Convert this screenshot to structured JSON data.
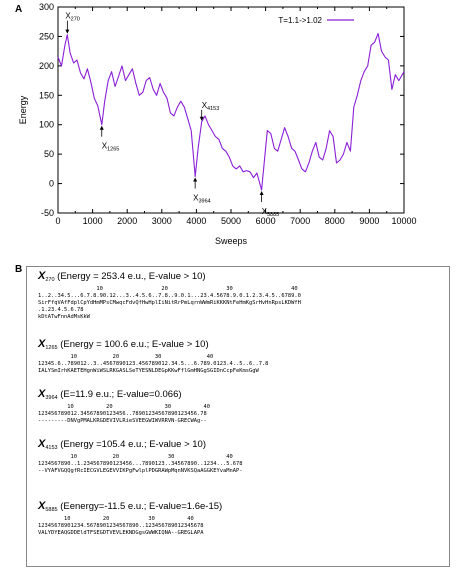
{
  "panels": {
    "a": "A",
    "b": "B"
  },
  "chart_data": {
    "type": "line",
    "xlabel": "Sweeps",
    "ylabel": "Energy",
    "xlim": [
      0,
      10000
    ],
    "ylim": [
      -50,
      300
    ],
    "xticks": [
      "0",
      "500",
      "1000",
      "1500",
      "2000",
      "2500",
      "3000",
      "3500",
      "4000",
      "4500",
      "5000",
      "5500",
      "6000",
      "6500",
      "7000",
      "7500",
      "8000",
      "8500",
      "9000",
      "9500",
      "10000"
    ],
    "yticks": [
      "-50",
      "0",
      "50",
      "100",
      "150",
      "200",
      "250",
      "300"
    ],
    "legend": "top-right",
    "series": [
      {
        "name": "T=1.1->1.02",
        "color": "#8a1fd8",
        "x": [
          0,
          100,
          200,
          270,
          350,
          450,
          550,
          650,
          750,
          850,
          950,
          1050,
          1150,
          1265,
          1350,
          1450,
          1550,
          1650,
          1750,
          1850,
          1950,
          2050,
          2150,
          2250,
          2350,
          2450,
          2550,
          2650,
          2750,
          2850,
          2950,
          3050,
          3150,
          3250,
          3350,
          3450,
          3550,
          3650,
          3750,
          3850,
          3964,
          4050,
          4153,
          4250,
          4350,
          4450,
          4550,
          4650,
          4750,
          4850,
          4950,
          5050,
          5150,
          5250,
          5350,
          5450,
          5550,
          5650,
          5750,
          5885,
          5950,
          6050,
          6150,
          6250,
          6350,
          6450,
          6550,
          6650,
          6750,
          6850,
          6950,
          7050,
          7150,
          7250,
          7350,
          7450,
          7550,
          7650,
          7750,
          7850,
          7950,
          8050,
          8150,
          8250,
          8350,
          8450,
          8550,
          8650,
          8750,
          8850,
          8950,
          9050,
          9150,
          9250,
          9350,
          9450,
          9550,
          9650,
          9750,
          9850,
          10000
        ],
        "y": [
          215,
          200,
          235,
          253,
          222,
          205,
          210,
          188,
          178,
          195,
          172,
          145,
          132,
          100,
          140,
          175,
          190,
          165,
          182,
          200,
          175,
          185,
          195,
          170,
          150,
          155,
          175,
          180,
          160,
          150,
          170,
          155,
          145,
          120,
          115,
          130,
          140,
          130,
          110,
          90,
          12,
          60,
          105,
          115,
          100,
          90,
          80,
          75,
          60,
          55,
          45,
          30,
          25,
          30,
          20,
          22,
          20,
          10,
          18,
          -11,
          30,
          90,
          85,
          60,
          55,
          75,
          95,
          80,
          60,
          55,
          40,
          25,
          20,
          35,
          55,
          70,
          45,
          40,
          60,
          90,
          80,
          35,
          40,
          50,
          70,
          55,
          130,
          150,
          175,
          190,
          200,
          235,
          240,
          255,
          225,
          215,
          210,
          160,
          185,
          175,
          190
        ]
      }
    ],
    "annotations": [
      {
        "x": 270,
        "y": 253,
        "label": "X",
        "sub": "270"
      },
      {
        "x": 1265,
        "y": 100,
        "label": "X",
        "sub": "1265"
      },
      {
        "x": 3964,
        "y": 12,
        "label": "X",
        "sub": "3964"
      },
      {
        "x": 4153,
        "y": 105,
        "label": "X",
        "sub": "4153"
      },
      {
        "x": 5885,
        "y": -11,
        "label": "X",
        "sub": "5885"
      }
    ]
  },
  "entries": [
    {
      "x": "X",
      "sub": "270",
      "info": "(Energy = 253.4 e.u., E-value > 10)",
      "lines": [
        "                  10                  20                  30                  40",
        "1..2..34.5...6.7.8.90.12...3..4.5.6..7.8..9.0.1...23.4.5678.9.0.1.2.3.4.5..6789.0",
        "SirFfqVAfFdplCpYdHmMPsCMwqcFdvQfHwHplIiNitRrPmLqrnWWmRiKKKNtFeHmKgSrHvHnRpsLKDWfH",
        ".1.23.4.5.6.78",
        "kDtATwFnnAdMsKkW"
      ]
    },
    {
      "x": "X",
      "sub": "1265",
      "info": "(Energy = 100.6 e.u.; E-value > 10)",
      "lines": [
        "          10           20           30              40",
        "12345.6..789012..3..4567890123.456789012.34.5...6.789.0123.4..5..6..7.8",
        "IALYSmIrhKAETEHgnWiWSLRKGASLSeTYESNLDEGpKKwFflGmHNGgSGIDnCcpFeKmsGgW"
      ]
    },
    {
      "x": "X",
      "sub": "3964",
      "info": "(E=11.9 e.u.; E-value=0.066)",
      "lines": [
        "         10          20                30          40",
        "123456789012.34567890123456..78901234567890123456.78",
        "---------DNVgPMALKRGDEVIVLRieSVEEGWIWVRRVN-GRECWAg--"
      ]
    },
    {
      "x": "X",
      "sub": "4153",
      "info": "(Energy =105.4 e.u.; E-value > 10)",
      "lines": [
        "          10           20               30                40",
        "1234567890..1.234567890123456...7890123..34567890..1234...5.678",
        "--VYAFVGQQgfRcIECGVLEGEVVIKPgFwlplPDGRAWpMqnNVKSQaAGGKEYvaMnAP-"
      ]
    },
    {
      "x": "X",
      "sub": "5885",
      "info": "(Eenergy=-11.5 e.u.; E-value=1.6e-15)",
      "lines": [
        "        10          20            30          40",
        "12345678901234.5678901234567890..123456789012345678",
        "VALYDYEAQGDDEldTFSEGDTVEVLEKNDGgsGWWKIQNA--GREGLAPA"
      ]
    }
  ]
}
